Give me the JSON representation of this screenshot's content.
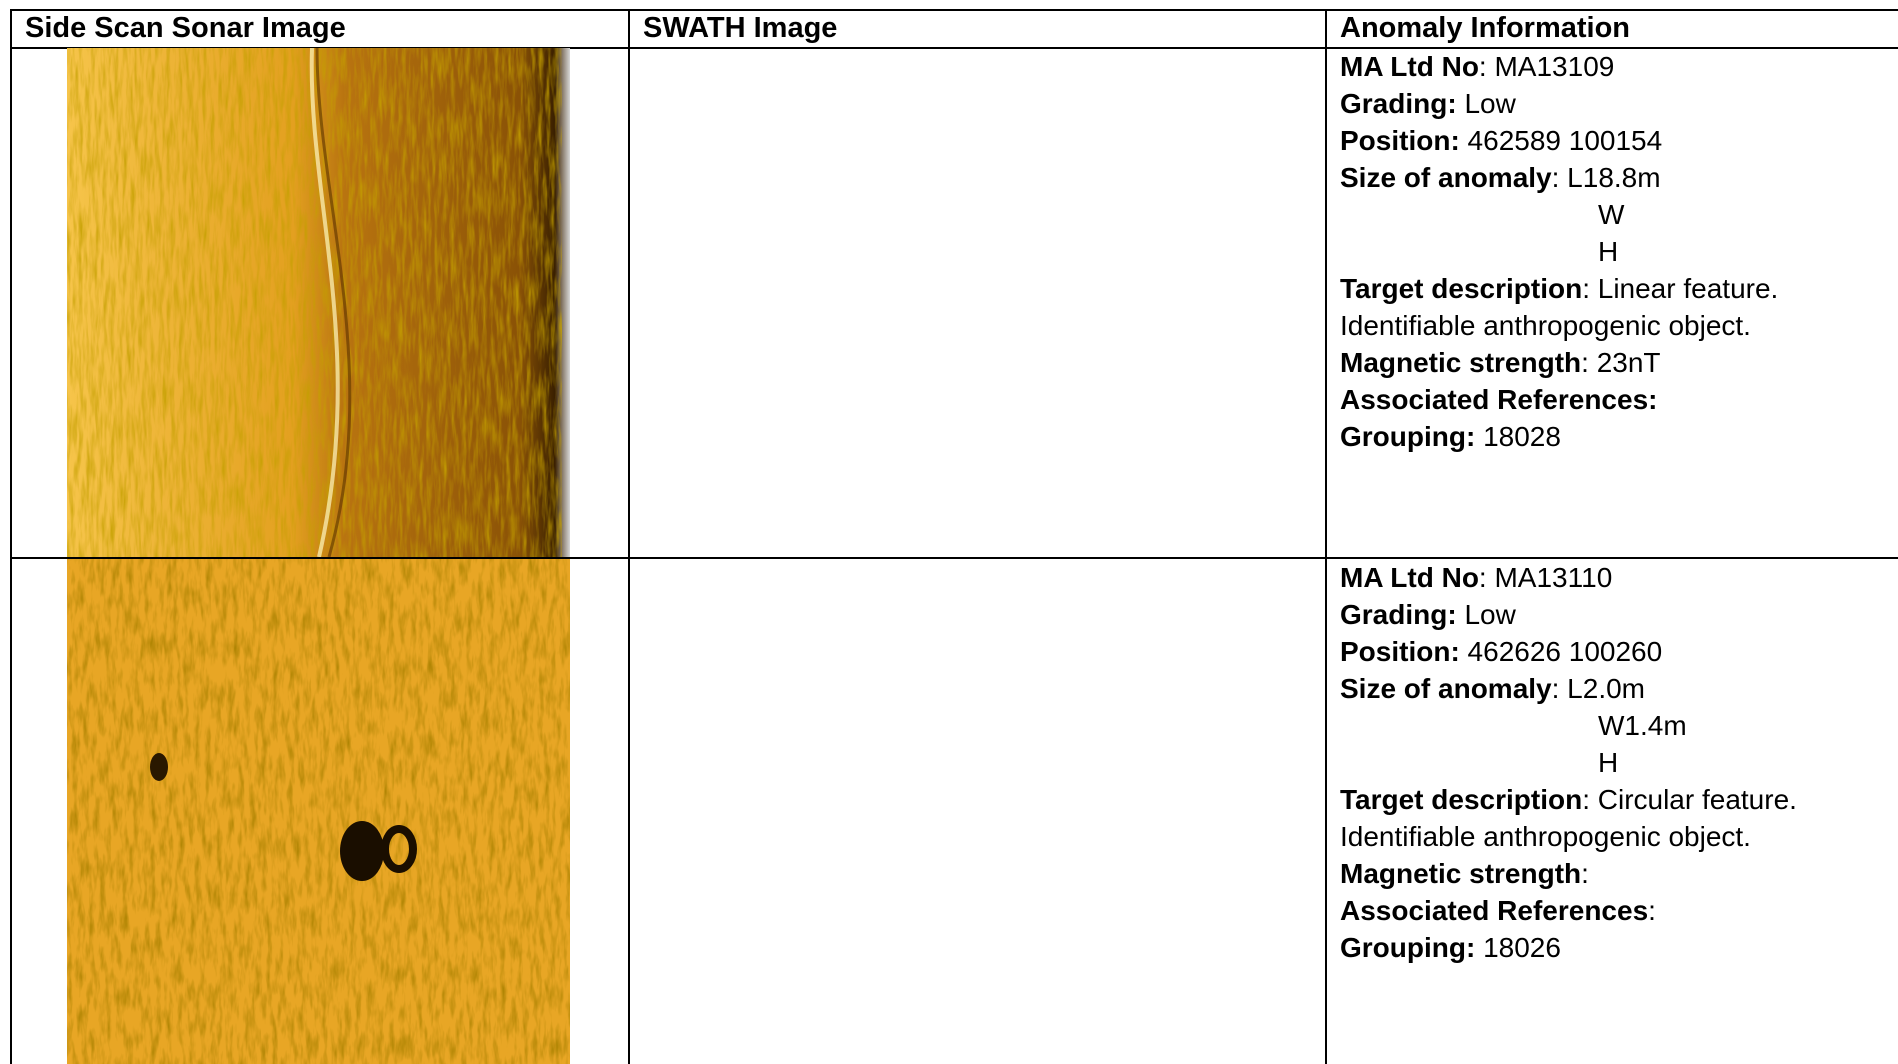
{
  "table": {
    "headers": [
      "Side Scan Sonar Image",
      "SWATH Image",
      "Anomaly Information"
    ],
    "rows": [
      {
        "fields": [
          {
            "label": "MA Ltd No",
            "value": ": MA13109"
          },
          {
            "label": "Grading:",
            "value": " Low"
          },
          {
            "label": "Position:",
            "value": " 462589 100154"
          },
          {
            "label": "Size of anomaly",
            "value": ": L18.8m",
            "indented": [
              "W",
              "H"
            ]
          },
          {
            "label": "Target description",
            "value": ": Linear feature.",
            "continued": [
              "Identifiable anthropogenic object."
            ]
          },
          {
            "label": "Magnetic strength",
            "value": ": 23nT"
          },
          {
            "label": "Associated References:"
          },
          {
            "label": "Grouping:",
            "value": " 18028"
          }
        ]
      },
      {
        "fields": [
          {
            "label": "MA Ltd No",
            "value": ": MA13110"
          },
          {
            "label": "Grading:",
            "value": " Low"
          },
          {
            "label": "Position:",
            "value": " 462626 100260"
          },
          {
            "label": "Size of anomaly",
            "value": ": L2.0m",
            "indented": [
              "W1.4m",
              "H"
            ]
          },
          {
            "label": "Target description",
            "value": ": Circular feature.",
            "continued": [
              "Identifiable anthropogenic object."
            ]
          },
          {
            "label": "Magnetic strength",
            "value": ":"
          },
          {
            "label": "Associated References",
            "value": ":"
          },
          {
            "label": "Grouping:",
            "value": " 18026"
          }
        ]
      }
    ]
  }
}
